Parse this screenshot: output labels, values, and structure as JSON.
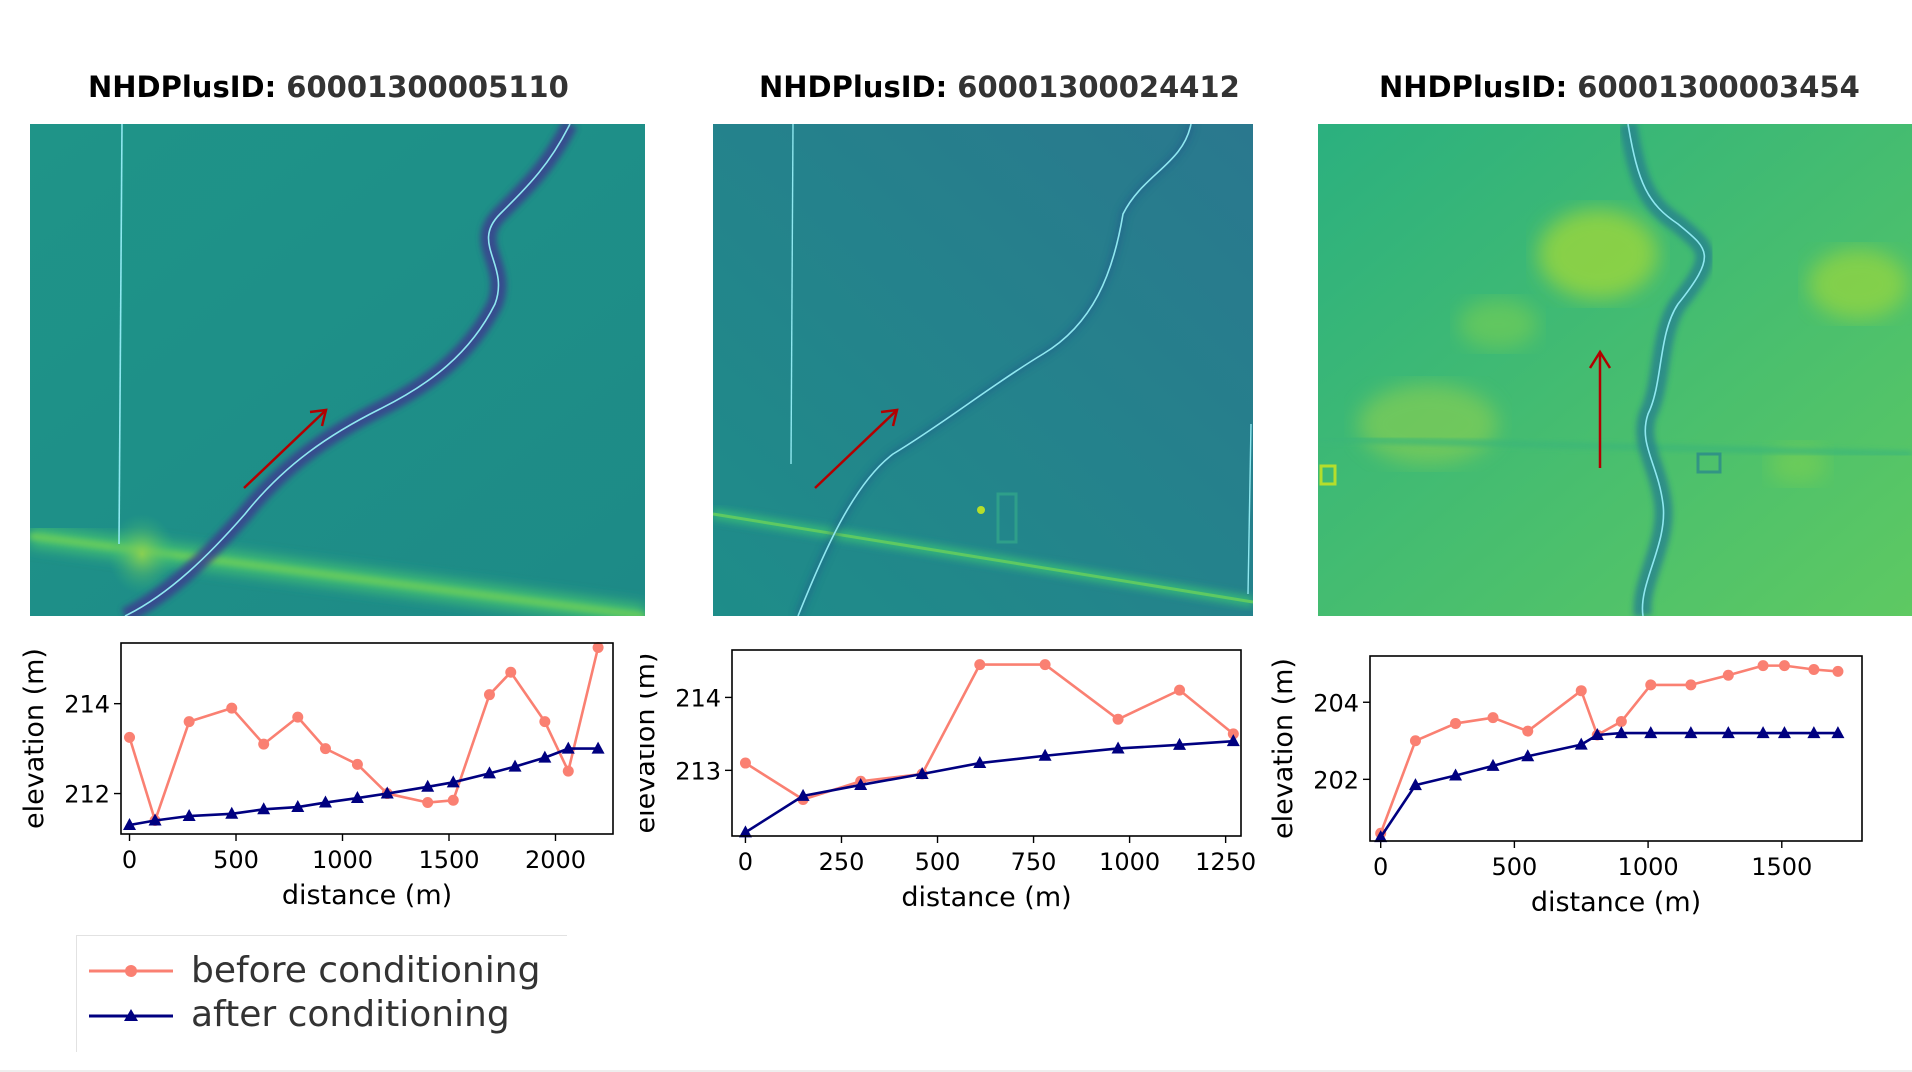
{
  "panels": [
    {
      "title_key": "NHDPlusID:",
      "title_value": "60001300005110",
      "map_arrow_direction": "north-east",
      "chart_data": {
        "type": "line",
        "xlabel": "distance (m)",
        "ylabel": "elevation (m)",
        "xlim": [
          -40,
          2270
        ],
        "ylim": [
          211.1,
          215.35
        ],
        "xticks": [
          0,
          500,
          1000,
          1500,
          2000
        ],
        "yticks": [
          212,
          214
        ],
        "grid": false,
        "series": [
          {
            "name": "before conditioning",
            "color": "#fa8072",
            "marker": "circle",
            "x": [
              0,
              120,
              280,
              480,
              630,
              790,
              920,
              1070,
              1210,
              1400,
              1520,
              1690,
              1790,
              1950,
              2060,
              2200
            ],
            "y": [
              213.25,
              211.4,
              213.6,
              213.9,
              213.1,
              213.7,
              213.0,
              212.65,
              212.0,
              211.8,
              211.85,
              214.2,
              214.7,
              213.6,
              212.5,
              215.25
            ]
          },
          {
            "name": "after conditioning",
            "color": "#000080",
            "marker": "triangle",
            "x": [
              0,
              120,
              280,
              480,
              630,
              790,
              920,
              1070,
              1210,
              1400,
              1520,
              1690,
              1810,
              1950,
              2060,
              2200
            ],
            "y": [
              211.3,
              211.4,
              211.5,
              211.55,
              211.65,
              211.7,
              211.8,
              211.9,
              212.0,
              212.15,
              212.25,
              212.45,
              212.6,
              212.8,
              213.0,
              213.0
            ]
          }
        ]
      }
    },
    {
      "title_key": "NHDPlusID:",
      "title_value": "60001300024412",
      "map_arrow_direction": "north-east",
      "chart_data": {
        "type": "line",
        "xlabel": "distance (m)",
        "ylabel": "elevation (m)",
        "xlim": [
          -35,
          1290
        ],
        "ylim": [
          212.1,
          214.65
        ],
        "xticks": [
          0,
          250,
          500,
          750,
          1000,
          1250
        ],
        "yticks": [
          213,
          214
        ],
        "grid": false,
        "series": [
          {
            "name": "before conditioning",
            "color": "#fa8072",
            "marker": "circle",
            "x": [
              0,
              150,
              300,
              460,
              610,
              780,
              970,
              1130,
              1270
            ],
            "y": [
              213.1,
              212.6,
              212.85,
              212.95,
              214.45,
              214.45,
              213.7,
              214.1,
              213.5
            ]
          },
          {
            "name": "after conditioning",
            "color": "#000080",
            "marker": "triangle",
            "x": [
              0,
              150,
              300,
              460,
              610,
              780,
              970,
              1130,
              1270
            ],
            "y": [
              212.15,
              212.65,
              212.8,
              212.95,
              213.1,
              213.2,
              213.3,
              213.35,
              213.4
            ]
          }
        ]
      }
    },
    {
      "title_key": "NHDPlusID:",
      "title_value": "60001300003454",
      "map_arrow_direction": "north",
      "chart_data": {
        "type": "line",
        "xlabel": "distance (m)",
        "ylabel": "elevation (m)",
        "xlim": [
          -40,
          1800
        ],
        "ylim": [
          200.4,
          205.2
        ],
        "xticks": [
          0,
          500,
          1000,
          1500
        ],
        "yticks": [
          202,
          204
        ],
        "grid": false,
        "series": [
          {
            "name": "before conditioning",
            "color": "#fa8072",
            "marker": "circle",
            "x": [
              0,
              130,
              280,
              420,
              550,
              750,
              810,
              900,
              1010,
              1160,
              1300,
              1430,
              1510,
              1620,
              1710
            ],
            "y": [
              200.6,
              203.0,
              203.45,
              203.6,
              203.25,
              204.3,
              203.15,
              203.5,
              204.45,
              204.45,
              204.7,
              204.95,
              204.95,
              204.85,
              204.8
            ]
          },
          {
            "name": "after conditioning",
            "color": "#000080",
            "marker": "triangle",
            "x": [
              0,
              130,
              280,
              420,
              550,
              750,
              810,
              900,
              1010,
              1160,
              1300,
              1430,
              1510,
              1620,
              1710
            ],
            "y": [
              200.5,
              201.85,
              202.1,
              202.35,
              202.6,
              202.9,
              203.15,
              203.2,
              203.2,
              203.2,
              203.2,
              203.2,
              203.2,
              203.2,
              203.2
            ]
          }
        ]
      }
    }
  ],
  "legend": {
    "entries": [
      {
        "label": "before conditioning",
        "color": "#fa8072",
        "marker": "circle"
      },
      {
        "label": "after conditioning",
        "color": "#000080",
        "marker": "triangle"
      }
    ]
  }
}
